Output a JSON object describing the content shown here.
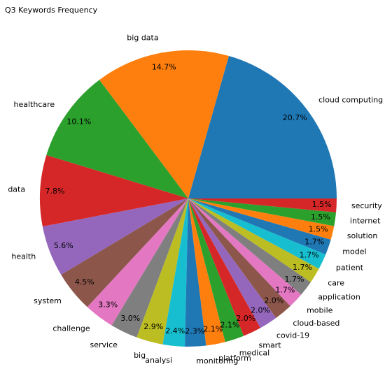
{
  "title": "Q3 Keywords Frequency",
  "chart_data": {
    "type": "pie",
    "title": "Q3 Keywords Frequency",
    "start_angle_deg": 0,
    "direction": "counterclockwise",
    "slices": [
      {
        "label": "cloud computing",
        "value": 20.7,
        "pct": "20.7%",
        "color": "#1f77b4"
      },
      {
        "label": "big data",
        "value": 14.7,
        "pct": "14.7%",
        "color": "#ff7f0e"
      },
      {
        "label": "healthcare",
        "value": 10.1,
        "pct": "10.1%",
        "color": "#2ca02c"
      },
      {
        "label": "data",
        "value": 7.8,
        "pct": "7.8%",
        "color": "#d62728"
      },
      {
        "label": "health",
        "value": 5.6,
        "pct": "5.6%",
        "color": "#9467bd"
      },
      {
        "label": "system",
        "value": 4.5,
        "pct": "4.5%",
        "color": "#8c564b"
      },
      {
        "label": "challenge",
        "value": 3.3,
        "pct": "3.3%",
        "color": "#e377c2"
      },
      {
        "label": "service",
        "value": 3.0,
        "pct": "3.0%",
        "color": "#7f7f7f"
      },
      {
        "label": "big",
        "value": 2.9,
        "pct": "2.9%",
        "color": "#bcbd22"
      },
      {
        "label": "analysi",
        "value": 2.4,
        "pct": "2.4%",
        "color": "#17becf"
      },
      {
        "label": "monitoring",
        "value": 2.3,
        "pct": "2.3%",
        "color": "#1f77b4"
      },
      {
        "label": "platform",
        "value": 2.1,
        "pct": "2.1%",
        "color": "#ff7f0e"
      },
      {
        "label": "medical",
        "value": 2.1,
        "pct": "2.1%",
        "color": "#2ca02c"
      },
      {
        "label": "smart",
        "value": 2.0,
        "pct": "2.0%",
        "color": "#d62728"
      },
      {
        "label": "covid-19",
        "value": 2.0,
        "pct": "2.0%",
        "color": "#9467bd"
      },
      {
        "label": "cloud-based",
        "value": 2.0,
        "pct": "2.0%",
        "color": "#8c564b"
      },
      {
        "label": "mobile",
        "value": 1.7,
        "pct": "1.7%",
        "color": "#e377c2"
      },
      {
        "label": "application",
        "value": 1.7,
        "pct": "1.7%",
        "color": "#7f7f7f"
      },
      {
        "label": "care",
        "value": 1.7,
        "pct": "1.7%",
        "color": "#bcbd22"
      },
      {
        "label": "patient",
        "value": 1.7,
        "pct": "1.7%",
        "color": "#17becf"
      },
      {
        "label": "model",
        "value": 1.7,
        "pct": "1.7%",
        "color": "#1f77b4"
      },
      {
        "label": "solution",
        "value": 1.5,
        "pct": "1.5%",
        "color": "#ff7f0e"
      },
      {
        "label": "internet",
        "value": 1.5,
        "pct": "1.5%",
        "color": "#2ca02c"
      },
      {
        "label": "security",
        "value": 1.5,
        "pct": "1.5%",
        "color": "#d62728"
      }
    ]
  }
}
